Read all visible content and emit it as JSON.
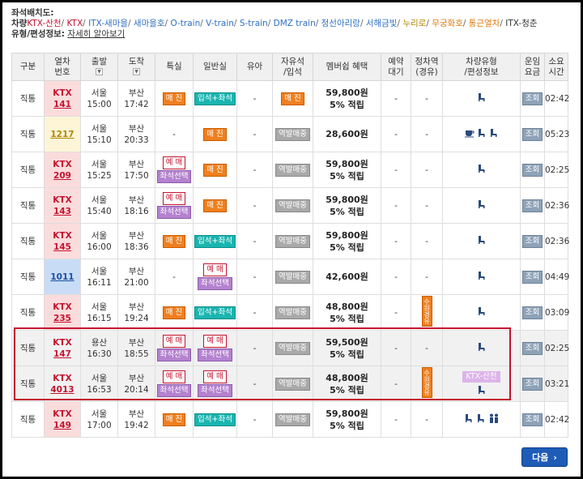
{
  "legend": {
    "seat_label": "좌석배치도:",
    "train_label": "차량",
    "types": [
      {
        "name": "KTX-산천",
        "color": "#c4122f"
      },
      {
        "name": "KTX",
        "color": "#c4122f"
      },
      {
        "name": "ITX-새마을",
        "color": "#2e6fbf"
      },
      {
        "name": "새마을호",
        "color": "#2e6fbf"
      },
      {
        "name": "O-train",
        "color": "#2e6fbf"
      },
      {
        "name": "V-train",
        "color": "#2e6fbf"
      },
      {
        "name": "S-train",
        "color": "#2e6fbf"
      },
      {
        "name": "DMZ train",
        "color": "#2e6fbf"
      },
      {
        "name": "정선아리랑",
        "color": "#2e6fbf"
      },
      {
        "name": "서해금빛",
        "color": "#2e6fbf"
      },
      {
        "name": "누리로",
        "color": "#b38600"
      },
      {
        "name": "무궁화호",
        "color": "#e07a10"
      },
      {
        "name": "통근열차",
        "color": "#e07a10"
      },
      {
        "name": "ITX-청춘",
        "color": "#333333"
      }
    ],
    "composition_label": "유형/편성정보:",
    "composition_link": "자세히 알아보기"
  },
  "headers": [
    "구분",
    "열차\n번호",
    "출발",
    "도착",
    "특실",
    "일반실",
    "유아",
    "자유석\n/입석",
    "멤버쉽 혜택",
    "예약\n대기",
    "정차역\n(경유)",
    "차량유형\n/편성정보",
    "운임\n요금",
    "소요\n시간"
  ],
  "rows": [
    {
      "kind": "직통",
      "type": "KTX",
      "num": "141",
      "dep": "서울",
      "dep_t": "15:00",
      "arr": "부산",
      "arr_t": "17:42",
      "first": "매 진",
      "std": "입석+좌석",
      "infant": "-",
      "free": "매 진",
      "fare": "59,800원",
      "benefit": "5% 적립",
      "wait": "-",
      "stop": "-",
      "query": "조회",
      "dur": "02:42"
    },
    {
      "kind": "직통",
      "type": "",
      "num": "1217",
      "dep": "서울",
      "dep_t": "15:10",
      "arr": "부산",
      "arr_t": "20:33",
      "first": "-",
      "std": "매 진",
      "infant": "-",
      "free": "역발매중",
      "fare": "28,600원",
      "benefit": "",
      "wait": "-",
      "stop": "-",
      "query": "조회",
      "dur": "05:23"
    },
    {
      "kind": "직통",
      "type": "KTX",
      "num": "209",
      "dep": "서울",
      "dep_t": "15:25",
      "arr": "부산",
      "arr_t": "17:50",
      "first_a": "예 매",
      "first_b": "좌석선택",
      "std": "매 진",
      "infant": "-",
      "free": "역발매중",
      "fare": "59,800원",
      "benefit": "5% 적립",
      "wait": "-",
      "stop": "-",
      "query": "조회",
      "dur": "02:25"
    },
    {
      "kind": "직통",
      "type": "KTX",
      "num": "143",
      "dep": "서울",
      "dep_t": "15:40",
      "arr": "부산",
      "arr_t": "18:16",
      "first_a": "예 매",
      "first_b": "좌석선택",
      "std": "매 진",
      "infant": "-",
      "free": "역발매중",
      "fare": "59,800원",
      "benefit": "5% 적립",
      "wait": "-",
      "stop": "-",
      "query": "조회",
      "dur": "02:36"
    },
    {
      "kind": "직통",
      "type": "KTX",
      "num": "145",
      "dep": "서울",
      "dep_t": "16:00",
      "arr": "부산",
      "arr_t": "18:36",
      "first": "매 진",
      "std": "입석+좌석",
      "infant": "-",
      "free": "역발매중",
      "fare": "59,800원",
      "benefit": "5% 적립",
      "wait": "-",
      "stop": "-",
      "query": "조회",
      "dur": "02:36"
    },
    {
      "kind": "직통",
      "type": "",
      "num": "1011",
      "dep": "서울",
      "dep_t": "16:11",
      "arr": "부산",
      "arr_t": "21:00",
      "first": "-",
      "std_a": "예 매",
      "std_b": "좌석선택",
      "infant": "-",
      "free": "역발매중",
      "fare": "42,600원",
      "benefit": "",
      "wait": "-",
      "stop": "-",
      "query": "조회",
      "dur": "04:49"
    },
    {
      "kind": "직통",
      "type": "KTX",
      "num": "235",
      "dep": "서울",
      "dep_t": "16:15",
      "arr": "부산",
      "arr_t": "19:24",
      "first": "매 진",
      "std": "입석+좌석",
      "infant": "-",
      "free": "역발매중",
      "fare": "48,800원",
      "benefit": "5% 적립",
      "wait": "-",
      "stop": "수원경유",
      "query": "조회",
      "dur": "03:09"
    },
    {
      "kind": "직통",
      "type": "KTX",
      "num": "147",
      "dep": "용산",
      "dep_t": "16:30",
      "arr": "부산",
      "arr_t": "18:55",
      "first_a": "예 매",
      "first_b": "좌석선택",
      "std_a": "예 매",
      "std_b": "좌석선택",
      "infant": "-",
      "free": "역발매중",
      "fare": "59,500원",
      "benefit": "5% 적립",
      "wait": "-",
      "stop": "-",
      "query": "조회",
      "dur": "02:25"
    },
    {
      "kind": "직통",
      "type": "KTX",
      "num": "4013",
      "dep": "서울",
      "dep_t": "16:53",
      "arr": "부산",
      "arr_t": "20:14",
      "first_a": "예 매",
      "first_b": "좌석선택",
      "std_a": "예 매",
      "std_b": "좌석선택",
      "infant": "-",
      "free": "역발매중",
      "fare": "48,800원",
      "benefit": "5% 적립",
      "wait": "-",
      "stop": "수원경유",
      "tag": "KTX-산천",
      "query": "조회",
      "dur": "03:21"
    },
    {
      "kind": "직통",
      "type": "KTX",
      "num": "149",
      "dep": "서울",
      "dep_t": "17:00",
      "arr": "부산",
      "arr_t": "19:42",
      "first": "매 진",
      "std": "입석+좌석",
      "infant": "-",
      "free": "역발매중",
      "fare": "59,800원",
      "benefit": "5% 적립",
      "wait": "-",
      "stop": "-",
      "query": "조회",
      "dur": "02:42"
    }
  ],
  "next": "다음",
  "colors": {
    "accent_red": "#c4122f",
    "sold_out": "#f07f1e",
    "standing": "#1ab5b0",
    "station_sale": "#a9a9a9",
    "seat_select": "#b482cf",
    "next_button": "#1f5cb7"
  }
}
